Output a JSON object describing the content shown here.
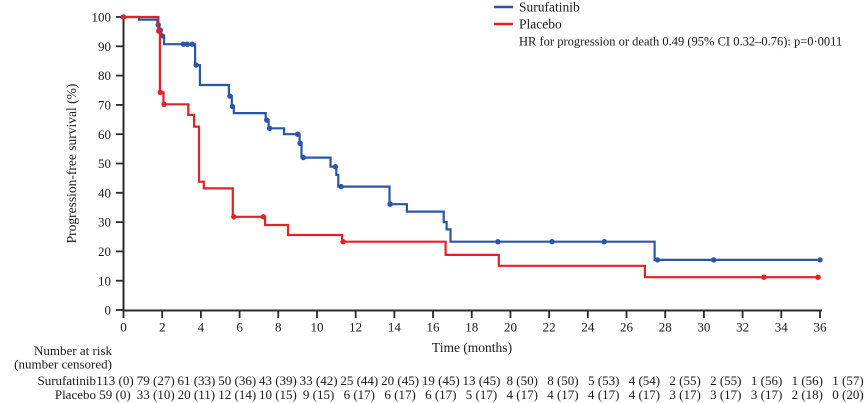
{
  "figure": {
    "legend": {
      "surufatinib_label": "Surufatinib",
      "placebo_label": "Placebo",
      "hr_line": "HR for progression or death 0.49 (95% CI 0.32–0.76): p=0·0011"
    },
    "colors": {
      "surufatinib": "#2A57A5",
      "placebo": "#E32128",
      "axis": "#2b2b2b"
    }
  },
  "chart_data": {
    "type": "line",
    "variant": "kaplan_meier_step",
    "title": "",
    "xlabel": "Time (months)",
    "ylabel": "Progression-free survival (%)",
    "xlim": [
      0,
      36
    ],
    "ylim": [
      0,
      100
    ],
    "xticks": [
      0,
      2,
      4,
      6,
      8,
      10,
      12,
      14,
      16,
      18,
      20,
      22,
      24,
      26,
      28,
      30,
      32,
      34,
      36
    ],
    "yticks": [
      0,
      10,
      20,
      30,
      40,
      50,
      60,
      70,
      80,
      90,
      100
    ],
    "grid": false,
    "legend_position": "top-right",
    "annotation": "HR for progression or death 0.49 (95% CI 0.32–0.76): p=0·0011",
    "series": [
      {
        "name": "Surufatinib",
        "color": "#2A57A5",
        "steps": [
          [
            0,
            100
          ],
          [
            0.8,
            100
          ],
          [
            0.8,
            99.1
          ],
          [
            1.75,
            99.1
          ],
          [
            1.75,
            97.3
          ],
          [
            1.85,
            97.3
          ],
          [
            1.85,
            95.5
          ],
          [
            1.95,
            95.5
          ],
          [
            1.95,
            93.6
          ],
          [
            2.1,
            93.6
          ],
          [
            2.1,
            90.7
          ],
          [
            3.7,
            90.7
          ],
          [
            3.7,
            83.6
          ],
          [
            3.95,
            83.6
          ],
          [
            3.95,
            76.8
          ],
          [
            5.45,
            76.8
          ],
          [
            5.45,
            73.0
          ],
          [
            5.6,
            73.0
          ],
          [
            5.6,
            69.5
          ],
          [
            5.7,
            69.5
          ],
          [
            5.7,
            67.2
          ],
          [
            7.35,
            67.2
          ],
          [
            7.35,
            64.8
          ],
          [
            7.5,
            64.8
          ],
          [
            7.5,
            62.0
          ],
          [
            8.3,
            62.0
          ],
          [
            8.3,
            60.0
          ],
          [
            9.1,
            60.0
          ],
          [
            9.1,
            56.9
          ],
          [
            9.2,
            56.9
          ],
          [
            9.2,
            52.0
          ],
          [
            10.7,
            52.0
          ],
          [
            10.7,
            48.9
          ],
          [
            11.0,
            48.9
          ],
          [
            11.0,
            46.1
          ],
          [
            11.1,
            46.1
          ],
          [
            11.1,
            42.1
          ],
          [
            13.75,
            42.1
          ],
          [
            13.75,
            36.1
          ],
          [
            14.65,
            36.1
          ],
          [
            14.65,
            33.6
          ],
          [
            16.55,
            33.6
          ],
          [
            16.55,
            30.0
          ],
          [
            16.7,
            30.0
          ],
          [
            16.7,
            27.5
          ],
          [
            16.9,
            27.5
          ],
          [
            16.9,
            23.3
          ],
          [
            27.45,
            23.3
          ],
          [
            27.45,
            17.1
          ],
          [
            36,
            17.1
          ]
        ],
        "censor_marks": [
          [
            1.8,
            97.3
          ],
          [
            1.9,
            95.5
          ],
          [
            2.0,
            93.6
          ],
          [
            3.1,
            90.7
          ],
          [
            3.3,
            90.7
          ],
          [
            3.55,
            90.7
          ],
          [
            3.75,
            83.6
          ],
          [
            5.5,
            73.0
          ],
          [
            5.63,
            69.5
          ],
          [
            7.4,
            64.8
          ],
          [
            7.55,
            62.0
          ],
          [
            9.0,
            60.0
          ],
          [
            9.13,
            56.9
          ],
          [
            9.3,
            52.0
          ],
          [
            10.95,
            48.9
          ],
          [
            11.25,
            42.1
          ],
          [
            13.78,
            36.1
          ],
          [
            19.35,
            23.3
          ],
          [
            22.15,
            23.3
          ],
          [
            24.85,
            23.3
          ],
          [
            27.6,
            17.1
          ],
          [
            30.5,
            17.1
          ],
          [
            36,
            17.1
          ]
        ]
      },
      {
        "name": "Placebo",
        "color": "#E32128",
        "steps": [
          [
            0,
            100
          ],
          [
            1.8,
            100
          ],
          [
            1.8,
            95.2
          ],
          [
            1.88,
            95.2
          ],
          [
            1.88,
            74.3
          ],
          [
            2.07,
            74.3
          ],
          [
            2.07,
            70.2
          ],
          [
            3.35,
            70.2
          ],
          [
            3.35,
            66.6
          ],
          [
            3.65,
            66.6
          ],
          [
            3.65,
            62.6
          ],
          [
            3.9,
            62.6
          ],
          [
            3.9,
            43.8
          ],
          [
            4.15,
            43.8
          ],
          [
            4.15,
            41.5
          ],
          [
            5.65,
            41.5
          ],
          [
            5.65,
            31.8
          ],
          [
            7.32,
            31.8
          ],
          [
            7.32,
            29.0
          ],
          [
            8.5,
            29.0
          ],
          [
            8.5,
            25.6
          ],
          [
            11.3,
            25.6
          ],
          [
            11.3,
            23.3
          ],
          [
            16.65,
            23.3
          ],
          [
            16.65,
            18.8
          ],
          [
            19.4,
            18.8
          ],
          [
            19.4,
            15.1
          ],
          [
            26.95,
            15.1
          ],
          [
            26.95,
            11.2
          ],
          [
            36,
            11.2
          ]
        ],
        "censor_marks": [
          [
            0,
            100
          ],
          [
            1.82,
            95.2
          ],
          [
            1.9,
            74.3
          ],
          [
            2.1,
            70.2
          ],
          [
            5.7,
            31.8
          ],
          [
            7.23,
            31.8
          ],
          [
            11.35,
            23.3
          ],
          [
            33.1,
            11.2
          ],
          [
            35.9,
            11.2
          ]
        ]
      }
    ]
  },
  "risk_table": {
    "header_line1": "Number at risk",
    "header_line2": "(number censored)",
    "timepoints": [
      0,
      2,
      4,
      6,
      8,
      10,
      12,
      14,
      16,
      18,
      20,
      22,
      24,
      26,
      28,
      30,
      32,
      34,
      36
    ],
    "rows": [
      {
        "label": "Surufatinib",
        "values": [
          "113 (0)",
          "79 (27)",
          "61 (33)",
          "50 (36)",
          "43 (39)",
          "33 (42)",
          "25 (44)",
          "20 (45)",
          "19 (45)",
          "13 (45)",
          "8 (50)",
          "8 (50)",
          "5 (53)",
          "4 (54)",
          "2 (55)",
          "2 (55)",
          "1 (56)",
          "1 (56)",
          "1 (57)"
        ]
      },
      {
        "label": "Placebo",
        "values": [
          "59 (0)",
          "33 (10)",
          "20 (11)",
          "12 (14)",
          "10 (15)",
          "9 (15)",
          "6 (17)",
          "6 (17)",
          "6 (17)",
          "5 (17)",
          "4 (17)",
          "4 (17)",
          "4 (17)",
          "4 (17)",
          "3 (17)",
          "3 (17)",
          "3 (17)",
          "2 (18)",
          "0 (20)"
        ]
      }
    ]
  }
}
